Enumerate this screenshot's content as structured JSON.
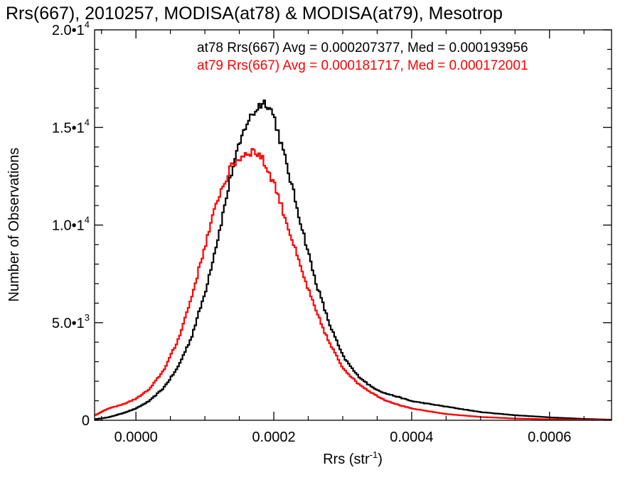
{
  "chart_data": {
    "type": "line",
    "title": "Rrs(667), 2010257, MODISA(at78) & MODISA(at79), Mesotrop",
    "xlabel": "Rrs (str",
    "xlabel_sup": "-1",
    "xlabel_close": ")",
    "ylabel": "Number of Observations",
    "xlim": [
      -6e-05,
      0.00069
    ],
    "ylim": [
      0,
      20000
    ],
    "x_ticks": [
      0.0,
      0.0002,
      0.0004,
      0.0006
    ],
    "x_tick_labels": [
      "0.0000",
      "0.0002",
      "0.0004",
      "0.0006"
    ],
    "y_ticks": [
      0,
      5000,
      10000,
      15000,
      20000
    ],
    "y_tick_labels": [
      {
        "base": "0",
        "exp": ""
      },
      {
        "base": "5.0•1",
        "exp": "3"
      },
      {
        "base": "1.0•1",
        "exp": "4"
      },
      {
        "base": "1.5•1",
        "exp": "4"
      },
      {
        "base": "2.0•1",
        "exp": "4"
      }
    ],
    "grid": false,
    "legend_position": "top-right",
    "series": [
      {
        "name": "at78 Rrs(667) Avg = 0.000207377, Med = 0.000193956",
        "color": "#000000",
        "style": "step",
        "x": [
          -6e-05,
          -4e-05,
          -2e-05,
          0.0,
          2e-05,
          4e-05,
          6e-05,
          8e-05,
          0.0001,
          0.00012,
          0.00014,
          0.00016,
          0.00018,
          0.00019,
          0.0002,
          0.00022,
          0.00024,
          0.00026,
          0.00028,
          0.0003,
          0.00032,
          0.00034,
          0.00036,
          0.00038,
          0.0004,
          0.00045,
          0.0005,
          0.00055,
          0.0006,
          0.00065,
          0.00069
        ],
        "values": [
          50,
          150,
          350,
          600,
          1000,
          1650,
          2650,
          4200,
          6500,
          9500,
          12900,
          15200,
          16200,
          16300,
          15600,
          12900,
          10000,
          7200,
          5000,
          3300,
          2350,
          1750,
          1400,
          1200,
          980,
          700,
          420,
          260,
          150,
          70,
          30
        ]
      },
      {
        "name": "at79 Rrs(667) Avg = 0.000181717, Med = 0.000172001",
        "color": "#ff0000",
        "style": "step",
        "x": [
          -6e-05,
          -4e-05,
          -2e-05,
          0.0,
          2e-05,
          4e-05,
          6e-05,
          8e-05,
          0.0001,
          0.00012,
          0.00014,
          0.00016,
          0.00017,
          0.00018,
          0.0002,
          0.00022,
          0.00024,
          0.00026,
          0.00028,
          0.0003,
          0.00032,
          0.00034,
          0.00036,
          0.00038,
          0.0004,
          0.00045,
          0.0005,
          0.00055,
          0.0006,
          0.00065,
          0.00069
        ],
        "values": [
          250,
          600,
          800,
          1100,
          1600,
          2550,
          4000,
          6200,
          8900,
          11500,
          13100,
          13700,
          13800,
          13600,
          12200,
          10000,
          7700,
          5700,
          4000,
          2700,
          1950,
          1450,
          1050,
          800,
          600,
          320,
          170,
          90,
          50,
          25,
          10
        ]
      }
    ]
  }
}
